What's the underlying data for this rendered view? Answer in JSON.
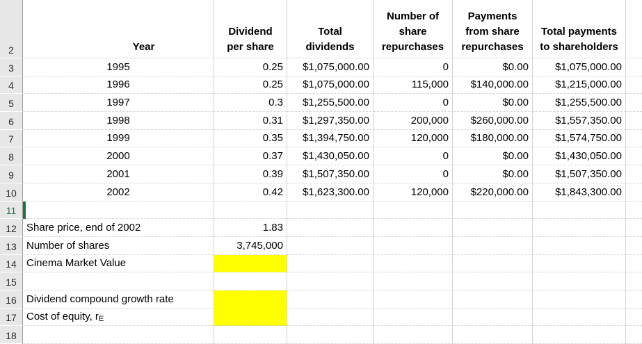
{
  "header_row": {
    "row_number": "2",
    "year": "Year",
    "dividend_per_share": "Dividend\nper share",
    "total_dividends": "Total\ndividends",
    "share_repurchases": "Number of\nshare\nrepurchases",
    "payments_from_repurchases": "Payments\nfrom share\nrepurchases",
    "total_payments": "Total payments\nto shareholders"
  },
  "data_rows": [
    {
      "row_number": "3",
      "year": "1995",
      "dividend_per_share": "0.25",
      "total_dividends": "$1,075,000.00",
      "share_repurchases": "0",
      "payments_from_repurchases": "$0.00",
      "total_payments": "$1,075,000.00"
    },
    {
      "row_number": "4",
      "year": "1996",
      "dividend_per_share": "0.25",
      "total_dividends": "$1,075,000.00",
      "share_repurchases": "115,000",
      "payments_from_repurchases": "$140,000.00",
      "total_payments": "$1,215,000.00"
    },
    {
      "row_number": "5",
      "year": "1997",
      "dividend_per_share": "0.3",
      "total_dividends": "$1,255,500.00",
      "share_repurchases": "0",
      "payments_from_repurchases": "$0.00",
      "total_payments": "$1,255,500.00"
    },
    {
      "row_number": "6",
      "year": "1998",
      "dividend_per_share": "0.31",
      "total_dividends": "$1,297,350.00",
      "share_repurchases": "200,000",
      "payments_from_repurchases": "$260,000.00",
      "total_payments": "$1,557,350.00"
    },
    {
      "row_number": "7",
      "year": "1999",
      "dividend_per_share": "0.35",
      "total_dividends": "$1,394,750.00",
      "share_repurchases": "120,000",
      "payments_from_repurchases": "$180,000.00",
      "total_payments": "$1,574,750.00"
    },
    {
      "row_number": "8",
      "year": "2000",
      "dividend_per_share": "0.37",
      "total_dividends": "$1,430,050.00",
      "share_repurchases": "0",
      "payments_from_repurchases": "$0.00",
      "total_payments": "$1,430,050.00"
    },
    {
      "row_number": "9",
      "year": "2001",
      "dividend_per_share": "0.39",
      "total_dividends": "$1,507,350.00",
      "share_repurchases": "0",
      "payments_from_repurchases": "$0.00",
      "total_payments": "$1,507,350.00"
    },
    {
      "row_number": "10",
      "year": "2002",
      "dividend_per_share": "0.42",
      "total_dividends": "$1,623,300.00",
      "share_repurchases": "120,000",
      "payments_from_repurchases": "$220,000.00",
      "total_payments": "$1,843,300.00"
    }
  ],
  "summary_rows": [
    {
      "row_number": "11",
      "label": "",
      "value": "",
      "highlight": false,
      "active": true
    },
    {
      "row_number": "12",
      "label": "Share price, end of 2002",
      "value": "1.83",
      "highlight": false
    },
    {
      "row_number": "13",
      "label": "Number of shares",
      "value": "3,745,000",
      "highlight": false
    },
    {
      "row_number": "14",
      "label": "Cinema Market Value",
      "value": "",
      "highlight": true
    },
    {
      "row_number": "15",
      "label": "",
      "value": "",
      "highlight": false
    },
    {
      "row_number": "16",
      "label": "Dividend compound growth rate",
      "value": "",
      "highlight": true,
      "merge_below": true
    },
    {
      "row_number": "17",
      "label": "Cost of equity, r",
      "label_sub": "E",
      "value": "",
      "highlight": true
    },
    {
      "row_number": "18",
      "label": "",
      "value": "",
      "highlight": false
    }
  ],
  "selection": {
    "active_row": "11"
  },
  "colors": {
    "highlight_fill": "#ffff00",
    "selection_green": "#1e7145",
    "gridline": "#d4d4d4",
    "row_header_bg": "#e7e7e7"
  }
}
